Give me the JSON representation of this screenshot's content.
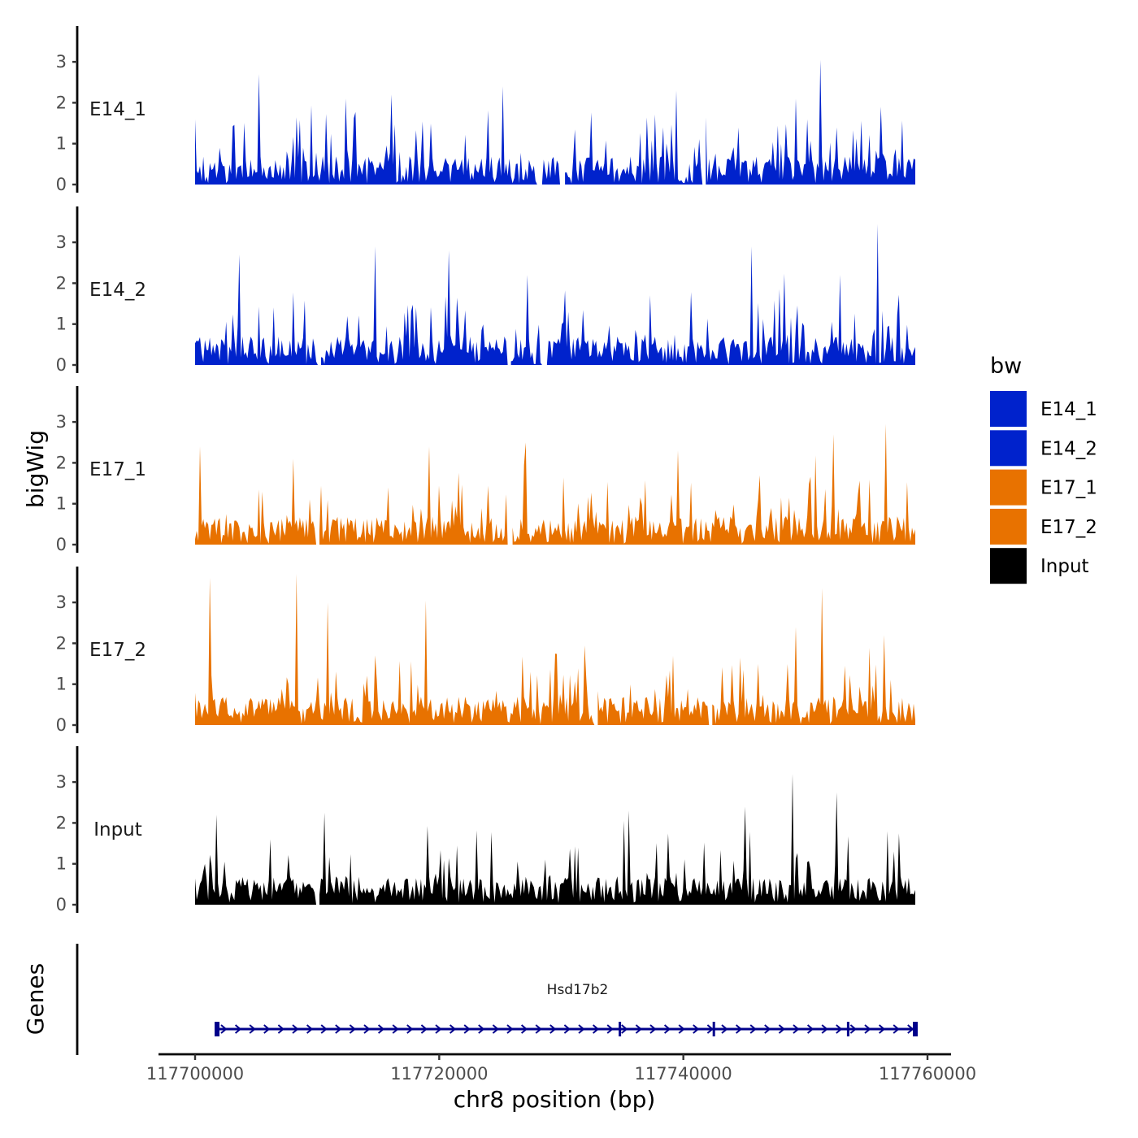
{
  "chart_data": {
    "type": "area",
    "title": "",
    "ylabel": "bigWig",
    "genes_label": "Genes",
    "xlabel": "chr8 position (bp)",
    "xlim": [
      117700000,
      117759000
    ],
    "ylim": [
      0,
      3.9
    ],
    "x_ticks": [
      117700000,
      117720000,
      117740000,
      117760000
    ],
    "x_tick_labels": [
      "117700000",
      "117720000",
      "117740000",
      "117760000"
    ],
    "y_ticks": [
      0,
      1,
      2,
      3
    ],
    "y_tick_labels": [
      "0",
      "1",
      "2",
      "3"
    ],
    "legend": {
      "title": "bw",
      "position": "right",
      "entries": [
        {
          "label": "E14_1",
          "color": "#0022CC"
        },
        {
          "label": "E14_2",
          "color": "#0022CC"
        },
        {
          "label": "E17_1",
          "color": "#E87200"
        },
        {
          "label": "E17_2",
          "color": "#E87200"
        },
        {
          "label": "Input",
          "color": "#000000"
        }
      ]
    },
    "series": [
      {
        "name": "E14_1",
        "color": "#0022CC",
        "peaks": [
          {
            "x": 117705200,
            "y": 2.7
          },
          {
            "x": 117712300,
            "y": 2.1
          },
          {
            "x": 117716100,
            "y": 2.2
          },
          {
            "x": 117725200,
            "y": 2.4
          },
          {
            "x": 117739400,
            "y": 2.3
          },
          {
            "x": 117749200,
            "y": 2.1
          },
          {
            "x": 117751200,
            "y": 3.05
          },
          {
            "x": 117756200,
            "y": 1.9
          }
        ],
        "gaps": [
          [
            117728000,
            117728300
          ],
          [
            117729900,
            117730200
          ],
          [
            117741500,
            117741800
          ]
        ]
      },
      {
        "name": "E14_2",
        "color": "#0022CC",
        "peaks": [
          {
            "x": 117703600,
            "y": 2.7
          },
          {
            "x": 117714800,
            "y": 2.9
          },
          {
            "x": 117720800,
            "y": 2.8
          },
          {
            "x": 117727200,
            "y": 2.2
          },
          {
            "x": 117745600,
            "y": 2.9
          },
          {
            "x": 117752800,
            "y": 2.2
          },
          {
            "x": 117755900,
            "y": 3.45
          }
        ],
        "gaps": [
          [
            117710000,
            117710300
          ],
          [
            117725500,
            117725800
          ],
          [
            117728300,
            117728700
          ]
        ]
      },
      {
        "name": "E17_1",
        "color": "#E87200",
        "peaks": [
          {
            "x": 117700400,
            "y": 2.4
          },
          {
            "x": 117708100,
            "y": 2.1
          },
          {
            "x": 117719200,
            "y": 2.4
          },
          {
            "x": 117739500,
            "y": 2.3
          },
          {
            "x": 117752300,
            "y": 2.7
          },
          {
            "x": 117756600,
            "y": 2.95
          }
        ],
        "gaps": [
          [
            117709800,
            117710100
          ],
          [
            117725600,
            117725900
          ]
        ]
      },
      {
        "name": "E17_2",
        "color": "#E87200",
        "peaks": [
          {
            "x": 117701200,
            "y": 3.6
          },
          {
            "x": 117708300,
            "y": 3.7
          },
          {
            "x": 117710800,
            "y": 3.0
          },
          {
            "x": 117718900,
            "y": 3.05
          },
          {
            "x": 117749200,
            "y": 2.4
          },
          {
            "x": 117751300,
            "y": 3.35
          },
          {
            "x": 117756500,
            "y": 2.2
          }
        ],
        "gaps": [
          [
            117732600,
            117732900
          ],
          [
            117742000,
            117742300
          ]
        ]
      },
      {
        "name": "Input",
        "color": "#000000",
        "peaks": [
          {
            "x": 117701800,
            "y": 2.2
          },
          {
            "x": 117710600,
            "y": 2.25
          },
          {
            "x": 117735500,
            "y": 2.3
          },
          {
            "x": 117745000,
            "y": 2.4
          },
          {
            "x": 117748900,
            "y": 3.2
          },
          {
            "x": 117752600,
            "y": 2.75
          },
          {
            "x": 117756700,
            "y": 1.8
          }
        ],
        "gaps": [
          [
            117709800,
            117710100
          ]
        ]
      }
    ],
    "genes": [
      {
        "name": "Hsd17b2",
        "start": 117701800,
        "end": 117759000,
        "strand": "+",
        "color": "#00008B",
        "exons": [
          117701800,
          117734800,
          117742500,
          117753500,
          117759000
        ]
      }
    ]
  }
}
